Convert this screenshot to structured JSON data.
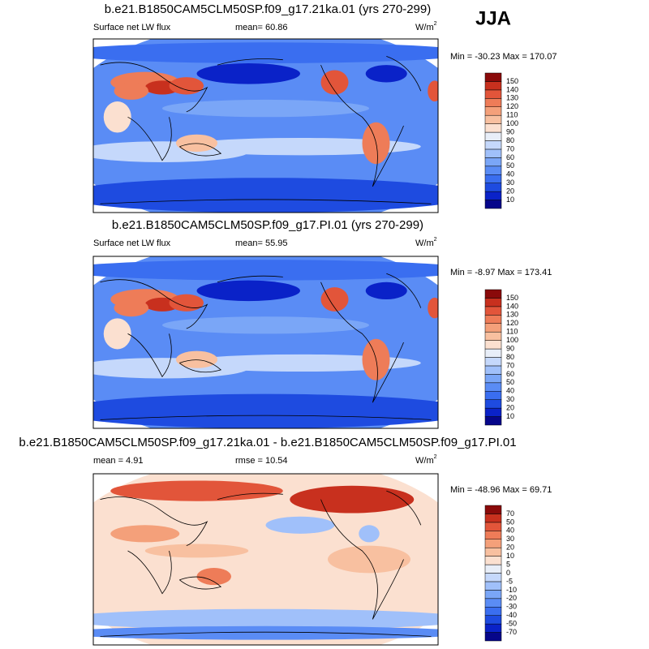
{
  "season": "JJA",
  "colors": [
    "#06068a",
    "#0a22c8",
    "#1e4be0",
    "#3a6ef0",
    "#5a8cf5",
    "#7aa6f7",
    "#a0c0fa",
    "#c5d8fb",
    "#e8eef8",
    "#fbe0d0",
    "#f8c0a0",
    "#f4a07a",
    "#ee7c58",
    "#e2553a",
    "#c8301e",
    "#8a0a0a"
  ],
  "panels": [
    {
      "title": "b.e21.B1850CAM5CLM50SP.f09_g17.21ka.01 (yrs 270-299)",
      "left_label": "Surface net LW flux",
      "center_label": "mean=  60.86",
      "units": "W/m",
      "units_exp": "2",
      "stats": "Min = -30.23 Max = 170.07",
      "levels": [
        10,
        20,
        30,
        40,
        50,
        60,
        70,
        80,
        90,
        100,
        110,
        120,
        130,
        140,
        150
      ]
    },
    {
      "title": "b.e21.B1850CAM5CLM50SP.f09_g17.PI.01 (yrs 270-299)",
      "left_label": "Surface net LW flux",
      "center_label": "mean=  55.95",
      "units": "W/m",
      "units_exp": "2",
      "stats": "Min =  -8.97 Max = 173.41",
      "levels": [
        10,
        20,
        30,
        40,
        50,
        60,
        70,
        80,
        90,
        100,
        110,
        120,
        130,
        140,
        150
      ]
    },
    {
      "title": "b.e21.B1850CAM5CLM50SP.f09_g17.21ka.01 - b.e21.B1850CAM5CLM50SP.f09_g17.PI.01",
      "left_label": "mean =   4.91",
      "center_label": "rmse =  10.54",
      "units": "W/m",
      "units_exp": "2",
      "stats": "Min = -48.96 Max =  69.71",
      "levels": [
        -70,
        -50,
        -40,
        -30,
        -20,
        -10,
        -5,
        0,
        5,
        10,
        20,
        30,
        40,
        50,
        70
      ]
    }
  ]
}
